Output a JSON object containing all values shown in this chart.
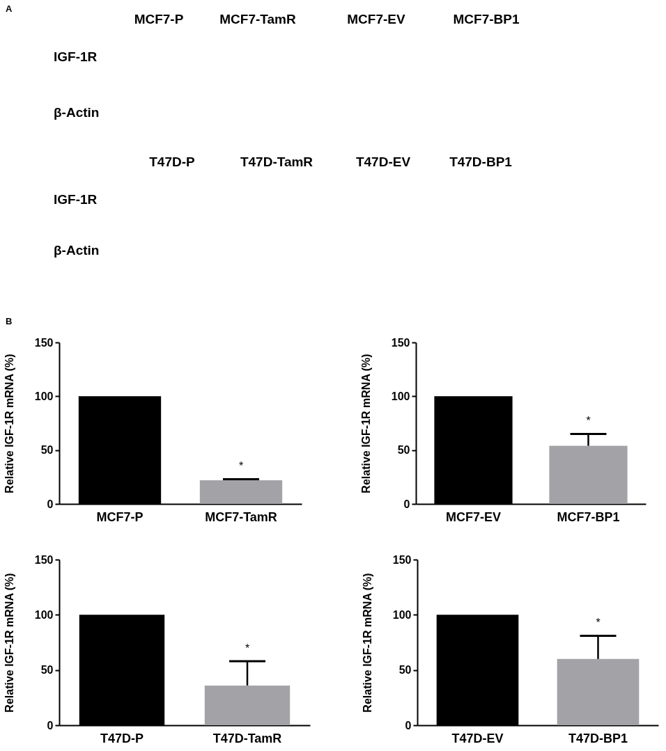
{
  "chart_data": [
    {
      "type": "other",
      "annotations": [
        "A",
        "MCF7-P",
        "MCF7-TamR",
        "MCF7-EV",
        "MCF7-BP1",
        "IGF-1R",
        "β-Actin",
        "T47D-P",
        "T47D-TamR",
        "T47D-EV",
        "T47D-BP1",
        "IGF-1R",
        "β-Actin",
        "B"
      ]
    },
    {
      "type": "bar",
      "categories": [
        "MCF7-P",
        "MCF7-TamR"
      ],
      "values": [
        100,
        22
      ],
      "colors": [
        "#000000",
        "#a3a3a7"
      ],
      "errors": [
        null,
        [
          22,
          23
        ]
      ],
      "ylabel": "Relative IGF-1R mRNA (%)",
      "ylim": [
        0,
        150
      ],
      "yticks": [
        0,
        50,
        100,
        150
      ],
      "annotations": [
        "*"
      ]
    },
    {
      "type": "bar",
      "categories": [
        "MCF7-EV",
        "MCF7-BP1"
      ],
      "values": [
        100,
        54
      ],
      "colors": [
        "#000000",
        "#a3a3a7"
      ],
      "errors": [
        null,
        [
          54,
          65
        ]
      ],
      "ylabel": "Relative IGF-1R mRNA (%)",
      "ylim": [
        0,
        150
      ],
      "yticks": [
        0,
        50,
        100,
        150
      ],
      "annotations": [
        "*"
      ]
    },
    {
      "type": "bar",
      "categories": [
        "T47D-P",
        "T47D-TamR"
      ],
      "values": [
        100,
        36
      ],
      "colors": [
        "#000000",
        "#a3a3a7"
      ],
      "errors": [
        null,
        [
          36,
          58
        ]
      ],
      "ylabel": "Relative IGF-1R mRNA (%)",
      "ylim": [
        0,
        150
      ],
      "yticks": [
        0,
        50,
        100,
        150
      ],
      "annotations": [
        "*"
      ]
    },
    {
      "type": "bar",
      "categories": [
        "T47D-EV",
        "T47D-BP1"
      ],
      "values": [
        100,
        60
      ],
      "colors": [
        "#000000",
        "#a3a3a7"
      ],
      "errors": [
        null,
        [
          60,
          81
        ]
      ],
      "ylabel": "Relative IGF-1R mRNA (%)",
      "ylim": [
        0,
        150
      ],
      "yticks": [
        0,
        50,
        100,
        150
      ],
      "annotations": [
        "*"
      ]
    }
  ]
}
